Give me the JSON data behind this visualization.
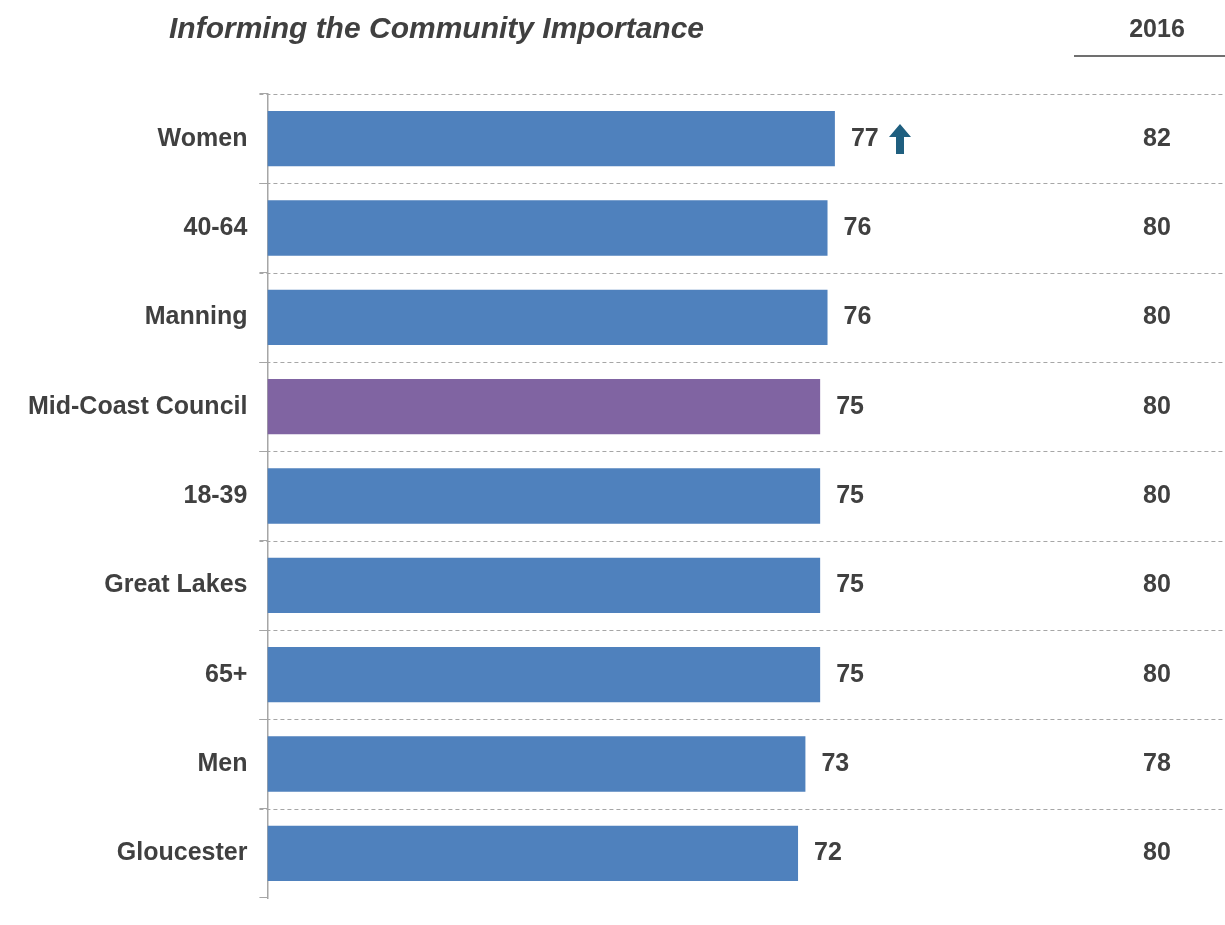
{
  "chart_data": {
    "type": "bar",
    "orientation": "horizontal",
    "title": "Informing the Community Importance",
    "categories": [
      "Women",
      "40-64",
      "Manning",
      "Mid-Coast Council",
      "18-39",
      "Great Lakes",
      "65+",
      "Men",
      "Gloucester"
    ],
    "values": [
      77,
      76,
      76,
      75,
      75,
      75,
      75,
      73,
      72
    ],
    "colors": [
      "#4f81bd",
      "#4f81bd",
      "#4f81bd",
      "#8064a2",
      "#4f81bd",
      "#4f81bd",
      "#4f81bd",
      "#4f81bd",
      "#4f81bd"
    ],
    "tick_labels": "y",
    "grid": "y",
    "data_labels": true,
    "annotations": [
      "2016",
      "82",
      "80",
      "80",
      "80",
      "80",
      "80",
      "80",
      "78",
      "80"
    ]
  }
}
